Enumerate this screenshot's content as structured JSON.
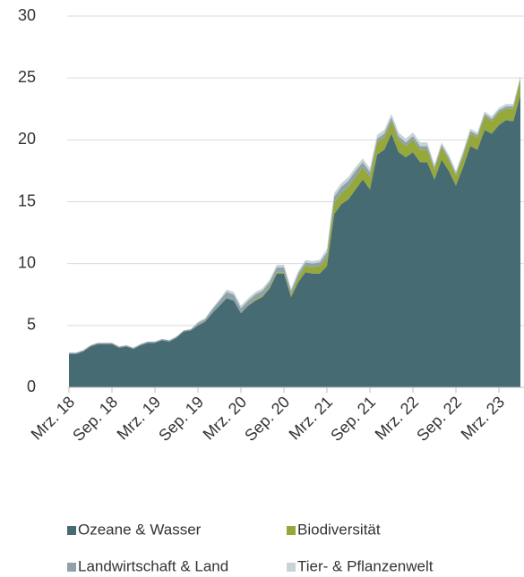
{
  "chart_data": {
    "type": "stacked_area",
    "categories": [
      "Mrz. 18",
      null,
      null,
      null,
      null,
      null,
      "Sep. 18",
      null,
      null,
      null,
      null,
      null,
      "Mrz. 19",
      null,
      null,
      null,
      null,
      null,
      "Sep. 19",
      null,
      null,
      null,
      null,
      null,
      "Mrz. 20",
      null,
      null,
      null,
      null,
      null,
      "Sep. 20",
      null,
      null,
      null,
      null,
      null,
      "Mrz. 21",
      null,
      null,
      null,
      null,
      null,
      "Sep. 21",
      null,
      null,
      null,
      null,
      null,
      "Mrz. 22",
      null,
      null,
      null,
      null,
      null,
      "Sep. 22",
      null,
      null,
      null,
      null,
      null,
      "Mrz. 23",
      null,
      null,
      null
    ],
    "series": [
      {
        "name": "Ozeane & Wasser",
        "color": "#476b73",
        "values": [
          2.7,
          2.7,
          2.9,
          3.3,
          3.5,
          3.5,
          3.5,
          3.2,
          3.3,
          3.1,
          3.4,
          3.6,
          3.6,
          3.8,
          3.7,
          4.0,
          4.5,
          4.6,
          5.0,
          5.3,
          6.0,
          6.6,
          7.2,
          7.0,
          6.0,
          6.6,
          7.0,
          7.3,
          8.0,
          9.2,
          9.2,
          7.3,
          8.5,
          9.3,
          9.2,
          9.2,
          9.8,
          14.0,
          14.8,
          15.2,
          16.0,
          16.8,
          16.0,
          18.8,
          19.2,
          20.5,
          19.0,
          18.6,
          19.0,
          18.2,
          18.2,
          16.8,
          18.4,
          17.5,
          16.3,
          17.8,
          19.5,
          19.2,
          20.8,
          20.5,
          21.2,
          21.6,
          21.5,
          23.6
        ]
      },
      {
        "name": "Biodiversität",
        "color": "#96a83a",
        "values": [
          0,
          0,
          0,
          0,
          0,
          0,
          0,
          0,
          0,
          0,
          0,
          0,
          0,
          0,
          0,
          0,
          0,
          0,
          0,
          0,
          0,
          0,
          0,
          0,
          0,
          0,
          0.1,
          0.1,
          0.1,
          0.1,
          0.1,
          0.2,
          0.4,
          0.5,
          0.5,
          0.6,
          0.7,
          0.9,
          0.9,
          1.0,
          1.0,
          1.0,
          1.0,
          1.0,
          1.0,
          1.0,
          1.0,
          0.9,
          1.0,
          1.0,
          1.0,
          0.8,
          1.0,
          0.9,
          0.8,
          0.9,
          1.0,
          1.0,
          1.1,
          1.0,
          1.0,
          0.9,
          1.0,
          1.2
        ]
      },
      {
        "name": "Landwirtschaft & Land",
        "color": "#8ea2a8",
        "values": [
          0.1,
          0.1,
          0.1,
          0.1,
          0.1,
          0.1,
          0.1,
          0.1,
          0.1,
          0.1,
          0.1,
          0.1,
          0.1,
          0.1,
          0.1,
          0.1,
          0.1,
          0.1,
          0.2,
          0.2,
          0.3,
          0.4,
          0.5,
          0.5,
          0.4,
          0.4,
          0.4,
          0.4,
          0.4,
          0.4,
          0.4,
          0.3,
          0.3,
          0.3,
          0.3,
          0.3,
          0.4,
          0.5,
          0.5,
          0.5,
          0.5,
          0.4,
          0.4,
          0.3,
          0.3,
          0.3,
          0.3,
          0.3,
          0.3,
          0.3,
          0.3,
          0.2,
          0.2,
          0.2,
          0.2,
          0.2,
          0.2,
          0.2,
          0.2,
          0.2,
          0.2,
          0.2,
          0.2,
          0.2
        ]
      },
      {
        "name": "Tier- & Pflanzenwelt",
        "color": "#c8d3d6",
        "values": [
          0,
          0,
          0,
          0,
          0,
          0,
          0,
          0,
          0,
          0,
          0,
          0,
          0,
          0,
          0,
          0,
          0,
          0,
          0.1,
          0.1,
          0.1,
          0.1,
          0.2,
          0.2,
          0.2,
          0.2,
          0.2,
          0.2,
          0.2,
          0.2,
          0.2,
          0.2,
          0.2,
          0.2,
          0.2,
          0.2,
          0.3,
          0.3,
          0.3,
          0.3,
          0.3,
          0.3,
          0.3,
          0.3,
          0.3,
          0.3,
          0.3,
          0.3,
          0.3,
          0.3,
          0.3,
          0.2,
          0.2,
          0.2,
          0.2,
          0.2,
          0.2,
          0.2,
          0.2,
          0.2,
          0.2,
          0.2,
          0.2,
          0.2
        ]
      }
    ],
    "ylim": [
      0,
      30
    ],
    "yticks": [
      0,
      5,
      10,
      15,
      20,
      25,
      30
    ],
    "grid": true
  }
}
